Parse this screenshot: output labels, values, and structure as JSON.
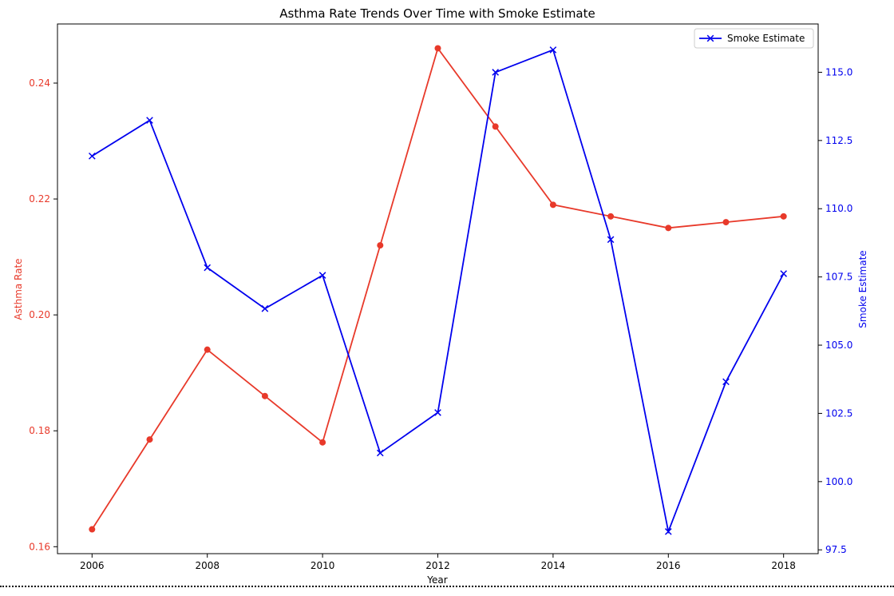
{
  "chart_data": {
    "type": "line",
    "title": "Asthma Rate Trends Over Time with Smoke Estimate",
    "xlabel": "Year",
    "x": [
      2006,
      2007,
      2008,
      2009,
      2010,
      2011,
      2012,
      2013,
      2014,
      2015,
      2016,
      2017,
      2018
    ],
    "xticks": [
      "2006",
      "2008",
      "2010",
      "2012",
      "2014",
      "2016",
      "2018"
    ],
    "xlim": [
      2005.4,
      2018.6
    ],
    "grid": false,
    "legend_position": "top-right",
    "left_axis": {
      "label": "Asthma Rate",
      "color": "#e8392a",
      "ylim": [
        0.1588,
        0.2502
      ],
      "ticks": [
        "0.16",
        "0.18",
        "0.20",
        "0.22",
        "0.24"
      ]
    },
    "right_axis": {
      "label": "Smoke Estimate",
      "color": "#0000ee",
      "ylim": [
        97.36,
        116.77
      ],
      "ticks": [
        "97.5",
        "100.0",
        "102.5",
        "105.0",
        "107.5",
        "110.0",
        "112.5",
        "115.0"
      ]
    },
    "series": [
      {
        "axis": "left",
        "color": "#e8392a",
        "marker": "circle",
        "values": [
          0.163,
          0.1785,
          0.194,
          0.186,
          0.178,
          0.212,
          0.246,
          0.2325,
          0.219,
          0.217,
          0.215,
          0.216,
          0.217
        ]
      },
      {
        "name": "Smoke Estimate",
        "axis": "right",
        "color": "#0000ee",
        "marker": "x",
        "values": [
          111.93,
          113.24,
          107.84,
          106.34,
          107.56,
          101.05,
          102.53,
          115.0,
          115.82,
          108.87,
          98.17,
          103.66,
          107.62
        ]
      }
    ]
  }
}
